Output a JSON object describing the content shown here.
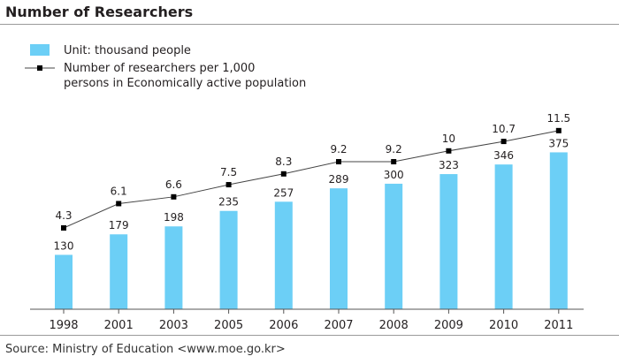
{
  "title": "Number of Researchers",
  "source": "Source: Ministry of Education <www.moe.go.kr>",
  "colors": {
    "bar": "#6ccff6",
    "line": "#444444",
    "marker": "#000000",
    "axis": "#555555",
    "rule": "#9a9a9a"
  },
  "chart_data": {
    "type": "bar",
    "categories": [
      "1998",
      "2001",
      "2003",
      "2005",
      "2006",
      "2007",
      "2008",
      "2009",
      "2010",
      "2011"
    ],
    "series": [
      {
        "name": "Unit: thousand people",
        "type": "bar",
        "values": [
          130,
          179,
          198,
          235,
          257,
          289,
          300,
          323,
          346,
          375
        ]
      },
      {
        "name": "Number of researchers per 1,000 persons in Economically active population",
        "type": "line",
        "values": [
          4.3,
          6.1,
          6.6,
          7.5,
          8.3,
          9.2,
          9.2,
          10,
          10.7,
          11.5
        ]
      }
    ],
    "legend": [
      "Unit: thousand people",
      "Number of researchers per 1,000",
      "persons in Economically active population"
    ],
    "legend_placement": "top-left"
  }
}
